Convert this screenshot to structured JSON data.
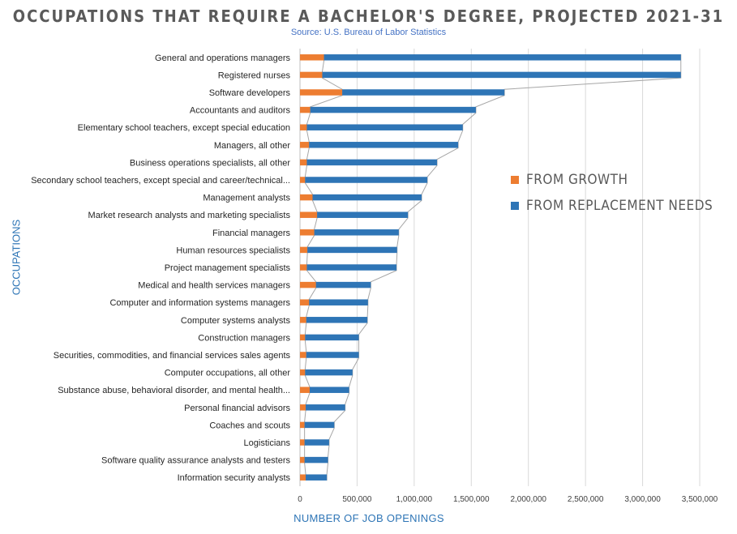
{
  "title": "OCCUPATIONS THAT REQUIRE A BACHELOR'S DEGREE, PROJECTED 2021-31",
  "subtitle": "Source: U.S. Bureau of Labor Statistics",
  "colors": {
    "growth": "#ed7d31",
    "replacement": "#2e75b6",
    "axis_title": "#2e75b6",
    "grid": "#d9d9d9"
  },
  "chart_data": {
    "type": "bar",
    "orientation": "horizontal",
    "stacked": true,
    "title": "OCCUPATIONS THAT REQUIRE A BACHELOR'S DEGREE, PROJECTED 2021-31",
    "subtitle": "Source: U.S. Bureau of Labor Statistics",
    "xlabel": "NUMBER OF JOB OPENINGS",
    "ylabel": "OCCUPATIONS",
    "xlim": [
      0,
      3500000
    ],
    "xticks": [
      0,
      500000,
      1000000,
      1500000,
      2000000,
      2500000,
      3000000,
      3500000
    ],
    "xtick_labels": [
      "0",
      "500,000",
      "1,000,000",
      "1,500,000",
      "2,000,000",
      "2,500,000",
      "3,000,000",
      "3,500,000"
    ],
    "grid": true,
    "series_lines": true,
    "legend_position": "right",
    "categories": [
      "General and operations managers",
      "Registered nurses",
      "Software developers",
      "Accountants and auditors",
      "Elementary school teachers, except special education",
      "Managers, all other",
      "Business operations specialists, all other",
      "Secondary school teachers, except special and career/technical...",
      "Management analysts",
      "Market research analysts and marketing specialists",
      "Financial managers",
      "Human resources specialists",
      "Project management specialists",
      "Medical and health services managers",
      "Computer and information systems managers",
      "Computer systems analysts",
      "Construction managers",
      "Securities, commodities, and financial services sales agents",
      "Computer occupations, all other",
      "Substance abuse, behavioral disorder, and mental health...",
      "Personal financial advisors",
      "Coaches and scouts",
      "Logisticians",
      "Software quality assurance analysts and testers",
      "Information security analysts"
    ],
    "series": [
      {
        "name": "FROM GROWTH",
        "color": "#ed7d31",
        "values": [
          210000,
          195000,
          370000,
          90000,
          60000,
          80000,
          60000,
          45000,
          110000,
          150000,
          125000,
          65000,
          60000,
          140000,
          80000,
          55000,
          45000,
          55000,
          45000,
          85000,
          50000,
          40000,
          40000,
          40000,
          50000
        ]
      },
      {
        "name": "FROM REPLACEMENT NEEDS",
        "color": "#2e75b6",
        "values": [
          3125000,
          3140000,
          1420000,
          1450000,
          1365000,
          1305000,
          1140000,
          1070000,
          955000,
          795000,
          740000,
          785000,
          785000,
          480000,
          515000,
          535000,
          470000,
          460000,
          415000,
          345000,
          345000,
          260000,
          215000,
          205000,
          185000
        ]
      }
    ]
  }
}
